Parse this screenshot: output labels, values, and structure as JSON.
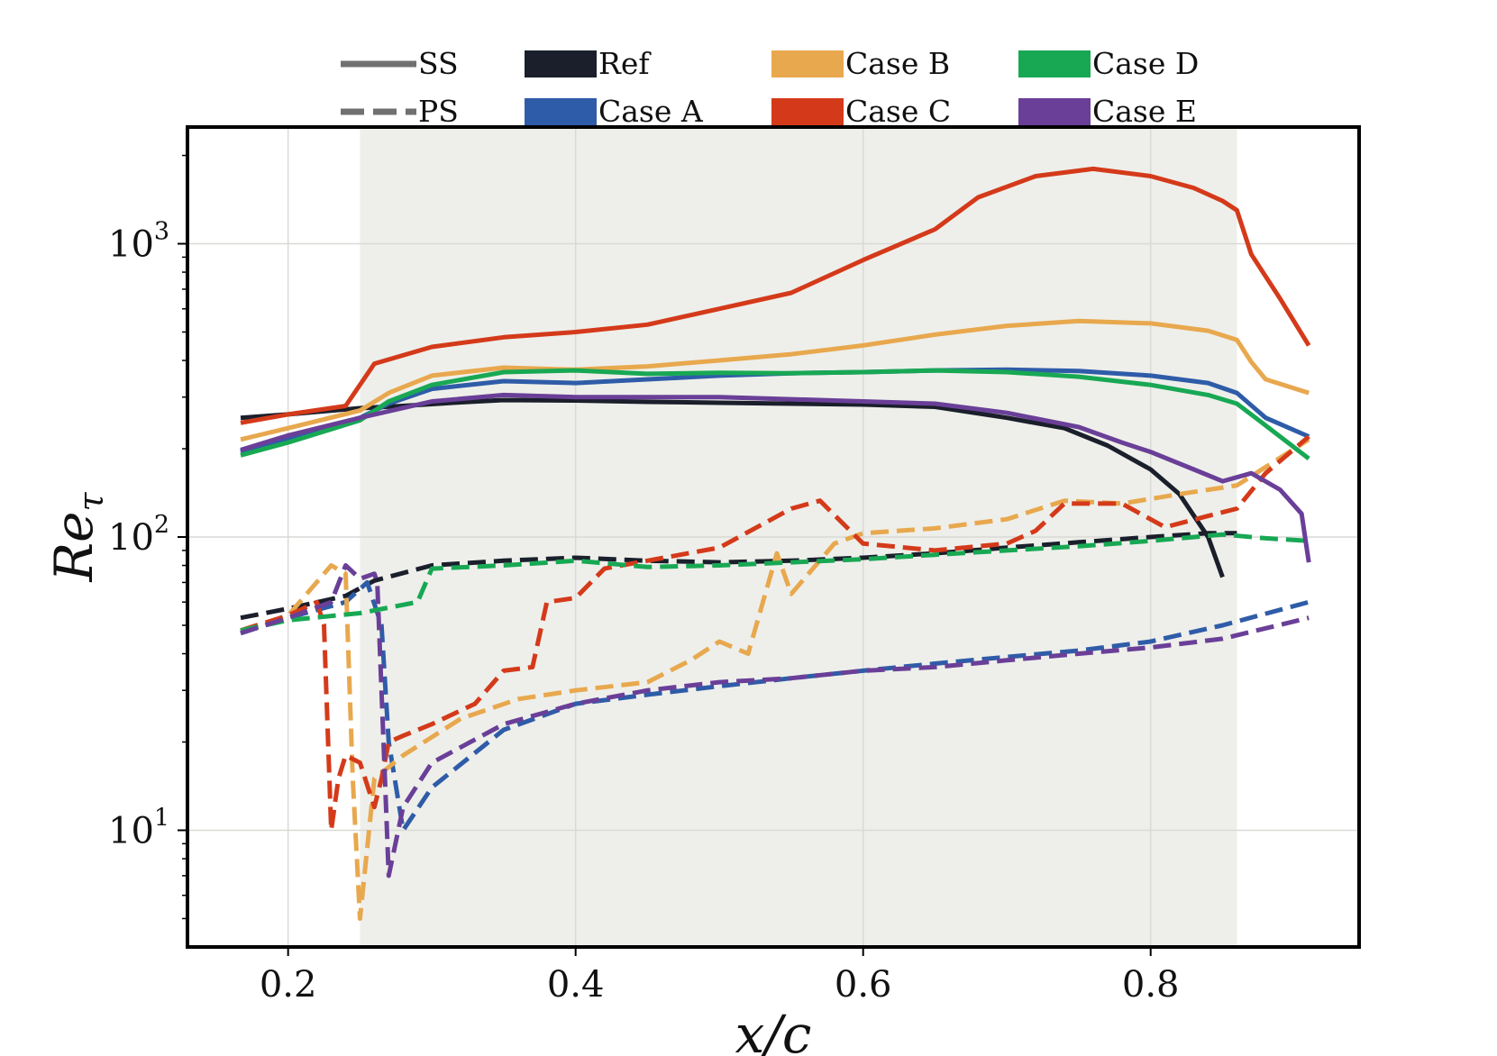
{
  "chart_data": {
    "type": "line",
    "xlabel": "x/c",
    "ylabel_main": "Re",
    "ylabel_sub": "τ",
    "xlim": [
      0.13,
      0.945
    ],
    "ylim": [
      4,
      2500
    ],
    "yscale": "log",
    "grid": true,
    "shaded_region": [
      0.25,
      0.86
    ],
    "x_ticks": [
      {
        "value": 0.2,
        "label": "0.2"
      },
      {
        "value": 0.4,
        "label": "0.4"
      },
      {
        "value": 0.6,
        "label": "0.6"
      },
      {
        "value": 0.8,
        "label": "0.8"
      }
    ],
    "y_ticks": [
      {
        "value": 10,
        "base": "10",
        "exp": "1"
      },
      {
        "value": 100,
        "base": "10",
        "exp": "2"
      },
      {
        "value": 1000,
        "base": "10",
        "exp": "3"
      }
    ],
    "legend": {
      "placement": "top",
      "style_entries": [
        {
          "label": "SS",
          "dash": "solid"
        },
        {
          "label": "PS",
          "dash": "dashed"
        }
      ],
      "case_entries": [
        {
          "label": "Ref",
          "color": "#1a1f2b"
        },
        {
          "label": "Case B",
          "color": "#e8a84e"
        },
        {
          "label": "Case D",
          "color": "#18a854"
        },
        {
          "label": "Case A",
          "color": "#2f5ca8"
        },
        {
          "label": "Case C",
          "color": "#d43a1a"
        },
        {
          "label": "Case E",
          "color": "#6a3f98"
        }
      ]
    },
    "series": [
      {
        "case": "Ref",
        "side": "SS",
        "color": "#1a1f2b",
        "dash": "solid",
        "x": [
          0.167,
          0.2,
          0.25,
          0.28,
          0.32,
          0.35,
          0.4,
          0.45,
          0.5,
          0.55,
          0.6,
          0.65,
          0.7,
          0.74,
          0.77,
          0.8,
          0.82,
          0.84,
          0.85
        ],
        "y": [
          255,
          262,
          275,
          280,
          288,
          293,
          292,
          289,
          287,
          285,
          283,
          278,
          255,
          235,
          205,
          170,
          140,
          100,
          73
        ]
      },
      {
        "case": "Ref",
        "side": "PS",
        "color": "#1a1f2b",
        "dash": "dashed",
        "x": [
          0.167,
          0.2,
          0.24,
          0.26,
          0.3,
          0.35,
          0.4,
          0.45,
          0.5,
          0.55,
          0.6,
          0.65,
          0.7,
          0.75,
          0.8,
          0.84,
          0.86
        ],
        "y": [
          53,
          57,
          63,
          71,
          80,
          83,
          85,
          83,
          82,
          83,
          85,
          88,
          92,
          96,
          100,
          103,
          103
        ]
      },
      {
        "case": "Case A",
        "side": "SS",
        "color": "#2f5ca8",
        "dash": "solid",
        "x": [
          0.167,
          0.2,
          0.25,
          0.27,
          0.3,
          0.35,
          0.4,
          0.45,
          0.5,
          0.55,
          0.6,
          0.65,
          0.7,
          0.75,
          0.8,
          0.84,
          0.86,
          0.88,
          0.91
        ],
        "y": [
          195,
          215,
          255,
          285,
          320,
          340,
          335,
          345,
          355,
          362,
          365,
          370,
          372,
          368,
          355,
          335,
          310,
          255,
          220
        ]
      },
      {
        "case": "Case A",
        "side": "PS",
        "color": "#2f5ca8",
        "dash": "dashed",
        "x": [
          0.167,
          0.2,
          0.24,
          0.255,
          0.265,
          0.27,
          0.28,
          0.3,
          0.35,
          0.4,
          0.45,
          0.5,
          0.55,
          0.6,
          0.65,
          0.7,
          0.75,
          0.8,
          0.85,
          0.91
        ],
        "y": [
          47,
          53,
          60,
          70,
          50,
          20,
          10,
          14,
          22,
          27,
          29,
          31,
          33,
          35,
          37,
          39,
          41,
          44,
          50,
          60
        ]
      },
      {
        "case": "Case B",
        "side": "SS",
        "color": "#e8a84e",
        "dash": "solid",
        "x": [
          0.167,
          0.2,
          0.25,
          0.27,
          0.3,
          0.35,
          0.4,
          0.45,
          0.5,
          0.55,
          0.6,
          0.65,
          0.7,
          0.75,
          0.8,
          0.84,
          0.86,
          0.87,
          0.88,
          0.91
        ],
        "y": [
          215,
          235,
          270,
          310,
          355,
          378,
          372,
          382,
          400,
          420,
          450,
          490,
          525,
          545,
          535,
          505,
          470,
          395,
          345,
          310
        ]
      },
      {
        "case": "Case B",
        "side": "PS",
        "color": "#e8a84e",
        "dash": "dashed",
        "x": [
          0.167,
          0.2,
          0.23,
          0.24,
          0.245,
          0.25,
          0.26,
          0.28,
          0.32,
          0.36,
          0.4,
          0.45,
          0.48,
          0.5,
          0.52,
          0.54,
          0.55,
          0.58,
          0.6,
          0.65,
          0.7,
          0.74,
          0.78,
          0.82,
          0.86,
          0.91
        ],
        "y": [
          48,
          54,
          80,
          75,
          15,
          5,
          15,
          18,
          24,
          28,
          30,
          32,
          38,
          44,
          40,
          88,
          64,
          95,
          103,
          107,
          115,
          133,
          130,
          140,
          150,
          215
        ]
      },
      {
        "case": "Case C",
        "side": "SS",
        "color": "#d43a1a",
        "dash": "solid",
        "x": [
          0.167,
          0.2,
          0.24,
          0.26,
          0.3,
          0.35,
          0.4,
          0.45,
          0.5,
          0.55,
          0.6,
          0.65,
          0.68,
          0.72,
          0.76,
          0.8,
          0.83,
          0.85,
          0.86,
          0.87,
          0.89,
          0.91
        ],
        "y": [
          245,
          262,
          280,
          390,
          445,
          480,
          500,
          530,
          600,
          680,
          880,
          1120,
          1440,
          1700,
          1800,
          1700,
          1550,
          1400,
          1300,
          920,
          650,
          450
        ]
      },
      {
        "case": "Case C",
        "side": "PS",
        "color": "#d43a1a",
        "dash": "dashed",
        "x": [
          0.167,
          0.2,
          0.22,
          0.225,
          0.23,
          0.235,
          0.24,
          0.25,
          0.26,
          0.265,
          0.27,
          0.28,
          0.3,
          0.33,
          0.35,
          0.37,
          0.38,
          0.4,
          0.42,
          0.45,
          0.5,
          0.55,
          0.57,
          0.6,
          0.65,
          0.7,
          0.72,
          0.74,
          0.78,
          0.81,
          0.84,
          0.86,
          0.88,
          0.91
        ],
        "y": [
          48,
          54,
          60,
          50,
          10,
          15,
          18,
          17,
          12,
          15,
          20,
          21,
          23,
          27,
          35,
          36,
          60,
          62,
          78,
          83,
          92,
          125,
          133,
          95,
          90,
          95,
          105,
          130,
          130,
          108,
          118,
          125,
          165,
          220
        ]
      },
      {
        "case": "Case D",
        "side": "SS",
        "color": "#18a854",
        "dash": "solid",
        "x": [
          0.167,
          0.2,
          0.25,
          0.27,
          0.3,
          0.35,
          0.4,
          0.45,
          0.5,
          0.55,
          0.6,
          0.65,
          0.7,
          0.75,
          0.8,
          0.84,
          0.86,
          0.88,
          0.91
        ],
        "y": [
          190,
          210,
          250,
          290,
          330,
          365,
          370,
          360,
          363,
          362,
          365,
          370,
          365,
          352,
          330,
          305,
          285,
          240,
          185
        ]
      },
      {
        "case": "Case D",
        "side": "PS",
        "color": "#18a854",
        "dash": "dashed",
        "x": [
          0.167,
          0.2,
          0.25,
          0.29,
          0.3,
          0.35,
          0.4,
          0.45,
          0.5,
          0.55,
          0.6,
          0.65,
          0.7,
          0.75,
          0.8,
          0.85,
          0.88,
          0.91
        ],
        "y": [
          48,
          52,
          55,
          60,
          78,
          80,
          83,
          79,
          80,
          82,
          84,
          87,
          90,
          93,
          97,
          102,
          99,
          97
        ]
      },
      {
        "case": "Case E",
        "side": "SS",
        "color": "#6a3f98",
        "dash": "solid",
        "x": [
          0.167,
          0.2,
          0.25,
          0.3,
          0.35,
          0.4,
          0.45,
          0.5,
          0.55,
          0.6,
          0.65,
          0.7,
          0.75,
          0.78,
          0.8,
          0.83,
          0.85,
          0.87,
          0.89,
          0.905,
          0.91
        ],
        "y": [
          198,
          222,
          255,
          290,
          305,
          300,
          300,
          300,
          295,
          290,
          285,
          265,
          237,
          210,
          195,
          170,
          155,
          165,
          145,
          120,
          82
        ]
      },
      {
        "case": "Case E",
        "side": "PS",
        "color": "#6a3f98",
        "dash": "dashed",
        "x": [
          0.167,
          0.2,
          0.23,
          0.24,
          0.25,
          0.26,
          0.262,
          0.27,
          0.28,
          0.3,
          0.35,
          0.4,
          0.45,
          0.5,
          0.55,
          0.6,
          0.65,
          0.7,
          0.75,
          0.8,
          0.85,
          0.91
        ],
        "y": [
          47,
          53,
          60,
          80,
          72,
          75,
          70,
          7,
          12,
          17,
          23,
          27,
          30,
          32,
          33,
          35,
          36,
          38,
          40,
          42,
          45,
          53
        ]
      }
    ]
  }
}
